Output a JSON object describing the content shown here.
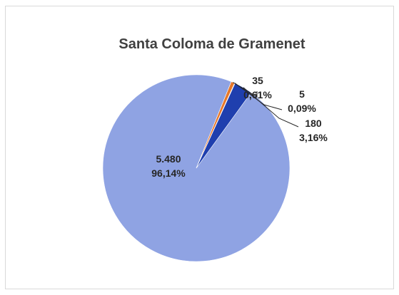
{
  "chart_data": {
    "type": "pie",
    "title": "Santa Coloma de Gramenet",
    "slices": [
      {
        "value": 5480,
        "label_value": "5.480",
        "label_percent": "96,14%",
        "color": "#8fa3e3"
      },
      {
        "value": 35,
        "label_value": "35",
        "label_percent": "0,61%",
        "color": "#e8782a"
      },
      {
        "value": 5,
        "label_value": "5",
        "label_percent": "0,09%",
        "color": "#7f7f7f"
      },
      {
        "value": 180,
        "label_value": "180",
        "label_percent": "3,16%",
        "color": "#1f3fae"
      }
    ],
    "legend": "none",
    "grid": false
  }
}
